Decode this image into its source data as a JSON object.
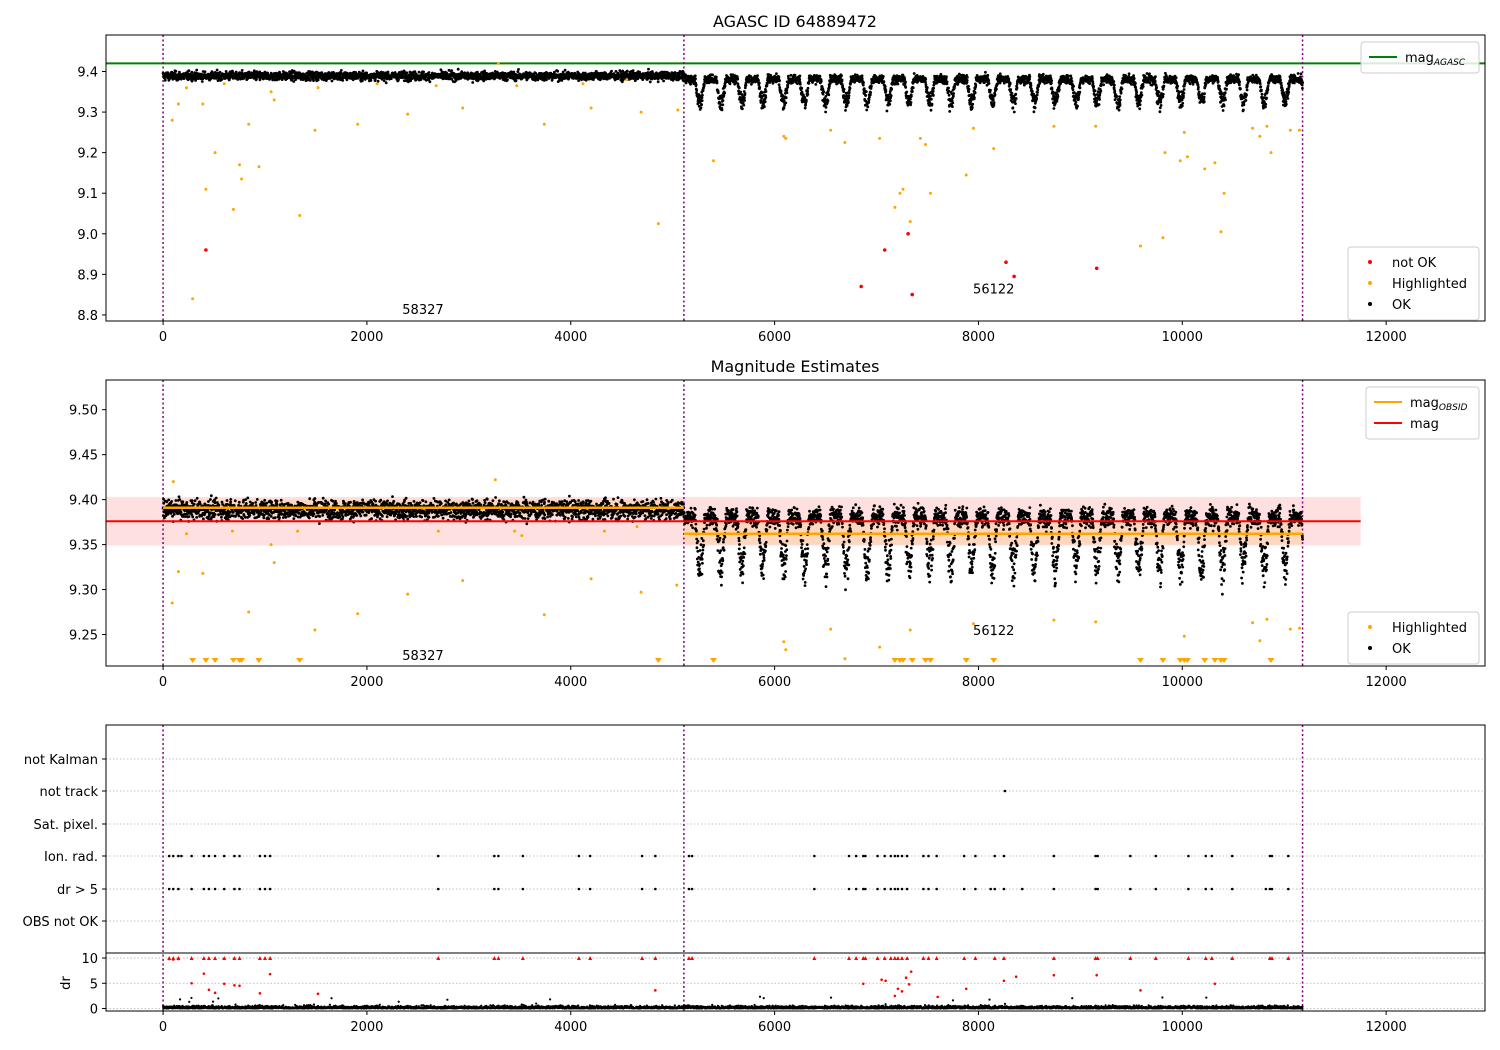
{
  "figure": {
    "panels": [
      {
        "title": "AGASC ID 64889472",
        "xlim": [
          -560,
          12970
        ],
        "ylim": [
          8.785,
          9.49
        ],
        "x_ticks": [
          0,
          2000,
          4000,
          6000,
          8000,
          10000,
          12000
        ],
        "y_ticks": [
          8.8,
          8.9,
          9.0,
          9.1,
          9.2,
          9.3,
          9.4
        ],
        "y_tick_labels": [
          "8.8",
          "8.9",
          "9.0",
          "9.1",
          "9.2",
          "9.3",
          "9.4"
        ],
        "obsid_labels": [
          {
            "text": "58327",
            "x": 2550,
            "y": 8.815
          },
          {
            "text": "56122",
            "x": 8150,
            "y": 8.865
          }
        ],
        "legend_top": {
          "entries": [
            {
              "label": "mag",
              "sub": "AGASC",
              "color": "#008000",
              "kind": "line"
            }
          ]
        },
        "legend_bottom": {
          "entries": [
            {
              "label": "not OK",
              "color": "#ff0000",
              "kind": "dot"
            },
            {
              "label": "Highlighted",
              "color": "#ffa500",
              "kind": "dot"
            },
            {
              "label": "OK",
              "color": "#000000",
              "kind": "dot"
            }
          ]
        }
      },
      {
        "title": "Magnitude Estimates",
        "xlim": [
          -560,
          12970
        ],
        "ylim": [
          9.215,
          9.533
        ],
        "x_ticks": [
          0,
          2000,
          4000,
          6000,
          8000,
          10000,
          12000
        ],
        "y_ticks": [
          9.25,
          9.3,
          9.35,
          9.4,
          9.45,
          9.5
        ],
        "y_tick_labels": [
          "9.25",
          "9.30",
          "9.35",
          "9.40",
          "9.45",
          "9.50"
        ],
        "obsid_labels": [
          {
            "text": "58327",
            "x": 2550,
            "y": 9.227
          },
          {
            "text": "56122",
            "x": 8150,
            "y": 9.255
          }
        ],
        "legend_top": {
          "entries": [
            {
              "label": "mag",
              "sub": "OBSID",
              "color": "#ffa500",
              "kind": "line"
            },
            {
              "label": "mag",
              "sub": "",
              "color": "#ff0000",
              "kind": "line"
            }
          ]
        },
        "legend_bottom": {
          "entries": [
            {
              "label": "Highlighted",
              "color": "#ffa500",
              "kind": "dot"
            },
            {
              "label": "OK",
              "color": "#000000",
              "kind": "dot"
            }
          ]
        }
      },
      {
        "flag_labels": [
          "not Kalman",
          "not track",
          "Sat. pixel.",
          "Ion. rad.",
          "dr > 5",
          "OBS not OK"
        ],
        "dr_label": "dr",
        "dr_ticks": [
          0,
          5,
          10
        ],
        "dr_tick_labels": [
          "0",
          "5",
          "10"
        ],
        "x_ticks": [
          0,
          2000,
          4000,
          6000,
          8000,
          10000,
          12000
        ]
      }
    ]
  },
  "chart_data": [
    {
      "type": "scatter",
      "title": "AGASC ID 64889472",
      "xlabel": "",
      "ylabel": "",
      "xlim": [
        -560,
        12970
      ],
      "ylim": [
        8.785,
        9.49
      ],
      "grid": false,
      "legend": [
        "upper right",
        "lower right"
      ],
      "reference_lines": [
        {
          "name": "mag_AGASC",
          "y": 9.42,
          "color": "#008000"
        }
      ],
      "observation_boundaries_x": [
        0,
        5110,
        11180
      ],
      "observations": [
        {
          "obsid": "58327",
          "x_range": [
            0,
            5110
          ],
          "ok_mag_median": 9.39,
          "ok_mag_spread": 0.012
        },
        {
          "obsid": "56122",
          "x_range": [
            5110,
            11180
          ],
          "ok_mag_median": 9.375,
          "ok_mag_dips_to": 9.31
        }
      ],
      "series": [
        {
          "name": "not OK",
          "color": "#ff0000",
          "points": [
            [
              420,
              8.96
            ],
            [
              6850,
              8.87
            ],
            [
              7080,
              8.96
            ],
            [
              7310,
              9.0
            ],
            [
              7350,
              8.85
            ],
            [
              8270,
              8.93
            ],
            [
              8350,
              8.895
            ],
            [
              9160,
              8.915
            ]
          ]
        },
        {
          "name": "Highlighted",
          "color": "#ffa500",
          "points": [
            [
              90,
              9.28
            ],
            [
              150,
              9.32
            ],
            [
              290,
              8.84
            ],
            [
              390,
              9.32
            ],
            [
              420,
              9.11
            ],
            [
              510,
              9.2
            ],
            [
              690,
              9.06
            ],
            [
              750,
              9.17
            ],
            [
              770,
              9.135
            ],
            [
              840,
              9.27
            ],
            [
              940,
              9.165
            ],
            [
              1060,
              9.35
            ],
            [
              1090,
              9.33
            ],
            [
              1340,
              9.045
            ],
            [
              1490,
              9.255
            ],
            [
              1910,
              9.27
            ],
            [
              2400,
              9.295
            ],
            [
              2940,
              9.31
            ],
            [
              3740,
              9.27
            ],
            [
              4200,
              9.31
            ],
            [
              4690,
              9.3
            ],
            [
              4860,
              9.025
            ],
            [
              5400,
              9.18
            ],
            [
              6090,
              9.24
            ],
            [
              6110,
              9.235
            ],
            [
              6550,
              9.255
            ],
            [
              6690,
              9.225
            ],
            [
              7030,
              9.235
            ],
            [
              7180,
              9.065
            ],
            [
              7230,
              9.1
            ],
            [
              7260,
              9.11
            ],
            [
              7330,
              9.03
            ],
            [
              7430,
              9.235
            ],
            [
              7480,
              9.22
            ],
            [
              7530,
              9.1
            ],
            [
              7880,
              9.145
            ],
            [
              7950,
              9.26
            ],
            [
              8150,
              9.21
            ],
            [
              8740,
              9.265
            ],
            [
              9150,
              9.265
            ],
            [
              9590,
              8.97
            ],
            [
              9810,
              8.99
            ],
            [
              9830,
              9.2
            ],
            [
              9980,
              9.18
            ],
            [
              10020,
              9.25
            ],
            [
              10050,
              9.19
            ],
            [
              10220,
              9.16
            ],
            [
              10320,
              9.175
            ],
            [
              10380,
              9.005
            ],
            [
              10410,
              9.1
            ],
            [
              10690,
              9.26
            ],
            [
              10760,
              9.24
            ],
            [
              10830,
              9.265
            ],
            [
              10870,
              9.2
            ],
            [
              11060,
              9.255
            ],
            [
              11150,
              9.255
            ],
            [
              230,
              9.36
            ],
            [
              600,
              9.37
            ],
            [
              1520,
              9.36
            ],
            [
              2100,
              9.37
            ],
            [
              2680,
              9.365
            ],
            [
              3290,
              9.42
            ],
            [
              3470,
              9.365
            ],
            [
              4120,
              9.37
            ],
            [
              4550,
              9.38
            ],
            [
              5050,
              9.305
            ]
          ]
        },
        {
          "name": "OK",
          "color": "#000000",
          "points": "dense band; see observations"
        }
      ]
    },
    {
      "type": "scatter",
      "title": "Magnitude Estimates",
      "xlabel": "",
      "ylabel": "",
      "xlim": [
        -560,
        12970
      ],
      "ylim": [
        9.215,
        9.533
      ],
      "grid": false,
      "legend": [
        "upper right",
        "lower right"
      ],
      "reference_lines": [
        {
          "name": "mag_OBSID",
          "color": "#ffa500",
          "segments": [
            {
              "x": [
                0,
                5110
              ],
              "y": 9.391,
              "band": [
                9.382,
                9.4
              ]
            },
            {
              "x": [
                5110,
                11180
              ],
              "y": 9.362,
              "band": [
                9.35,
                9.375
              ]
            }
          ]
        },
        {
          "name": "mag",
          "color": "#ff0000",
          "x": [
            -560,
            11750
          ],
          "y": 9.376,
          "band": [
            9.349,
            9.403
          ]
        }
      ],
      "observation_boundaries_x": [
        0,
        5110,
        11180
      ],
      "series": [
        {
          "name": "Highlighted",
          "color": "#ffa500",
          "points": [
            [
              90,
              9.285
            ],
            [
              150,
              9.32
            ],
            [
              390,
              9.318
            ],
            [
              840,
              9.275
            ],
            [
              1060,
              9.35
            ],
            [
              1090,
              9.33
            ],
            [
              1490,
              9.255
            ],
            [
              1910,
              9.273
            ],
            [
              2400,
              9.295
            ],
            [
              2940,
              9.31
            ],
            [
              3740,
              9.272
            ],
            [
              4200,
              9.312
            ],
            [
              4690,
              9.297
            ],
            [
              5040,
              9.305
            ],
            [
              6090,
              9.242
            ],
            [
              6110,
              9.233
            ],
            [
              6550,
              9.256
            ],
            [
              6690,
              9.223
            ],
            [
              7030,
              9.236
            ],
            [
              7330,
              9.255
            ],
            [
              7950,
              9.262
            ],
            [
              8150,
              9.25
            ],
            [
              8740,
              9.266
            ],
            [
              9150,
              9.264
            ],
            [
              10020,
              9.248
            ],
            [
              10690,
              9.263
            ],
            [
              10760,
              9.243
            ],
            [
              10830,
              9.267
            ],
            [
              11060,
              9.256
            ],
            [
              11150,
              9.257
            ],
            [
              100,
              9.42
            ],
            [
              230,
              9.362
            ],
            [
              680,
              9.365
            ],
            [
              1320,
              9.365
            ],
            [
              2700,
              9.365
            ],
            [
              3260,
              9.422
            ],
            [
              3450,
              9.365
            ],
            [
              3520,
              9.36
            ],
            [
              4330,
              9.365
            ],
            [
              4650,
              9.37
            ]
          ]
        },
        {
          "name": "Highlighted (below axis)",
          "color": "#ffa500",
          "marker": "triangle-down",
          "x": [
            290,
            420,
            510,
            690,
            750,
            770,
            940,
            1340,
            4860,
            5400,
            7180,
            7230,
            7260,
            7350,
            7480,
            7530,
            7880,
            8150,
            9590,
            9810,
            9980,
            10020,
            10050,
            10220,
            10320,
            10380,
            10410,
            10870
          ]
        },
        {
          "name": "OK",
          "color": "#000000",
          "points": "dense band; see observations"
        }
      ]
    },
    {
      "type": "scatter",
      "title": "",
      "xlabel": "",
      "ylabel": "",
      "flag_rows": [
        "not Kalman",
        "not track",
        "Sat. pixel.",
        "Ion. rad.",
        "dr > 5",
        "OBS not OK"
      ],
      "flag_points": {
        "not track": [
          8260
        ],
        "Ion. rad.": [
          60,
          100,
          150,
          180,
          280,
          400,
          450,
          510,
          600,
          700,
          750,
          950,
          1000,
          1050,
          2700,
          3250,
          3290,
          3530,
          4080,
          4190,
          4700,
          4830,
          5160,
          5190,
          6390,
          6730,
          6800,
          6870,
          6890,
          7010,
          7080,
          7140,
          7180,
          7210,
          7250,
          7300,
          7460,
          7510,
          7590,
          7860,
          7970,
          8160,
          8250,
          8740,
          9150,
          9170,
          9490,
          9740,
          10060,
          10230,
          10290,
          10490,
          10860,
          10880,
          11040
        ],
        "dr > 5": [
          60,
          100,
          150,
          280,
          400,
          450,
          510,
          600,
          700,
          750,
          950,
          1000,
          1050,
          2700,
          3250,
          3290,
          3530,
          4080,
          4190,
          4700,
          4830,
          5160,
          5190,
          6390,
          6730,
          6800,
          6870,
          6890,
          7010,
          7080,
          7140,
          7180,
          7210,
          7250,
          7300,
          7460,
          7510,
          7590,
          7860,
          7970,
          8120,
          8160,
          8250,
          8430,
          8740,
          9150,
          9170,
          9490,
          9740,
          10060,
          10230,
          10290,
          10490,
          10820,
          10860,
          10880,
          11040
        ]
      },
      "dr_ylim": [
        -0.5,
        11
      ],
      "dr_ticks": [
        0,
        5,
        10
      ],
      "dr_points_high": [
        [
          60,
          9.8
        ],
        [
          100,
          9.7
        ],
        [
          150,
          9.8
        ],
        [
          280,
          5.0
        ],
        [
          400,
          6.9
        ],
        [
          450,
          3.7
        ],
        [
          510,
          3.1
        ],
        [
          600,
          4.9
        ],
        [
          700,
          4.6
        ],
        [
          750,
          4.5
        ],
        [
          950,
          3.0
        ],
        [
          1050,
          6.8
        ],
        [
          1520,
          2.9
        ],
        [
          4830,
          3.6
        ],
        [
          6870,
          4.9
        ],
        [
          7050,
          5.7
        ],
        [
          7090,
          5.5
        ],
        [
          7180,
          2.5
        ],
        [
          7210,
          3.9
        ],
        [
          7250,
          3.4
        ],
        [
          7290,
          6.1
        ],
        [
          7320,
          4.8
        ],
        [
          7340,
          7.3
        ],
        [
          7600,
          2.3
        ],
        [
          7880,
          3.9
        ],
        [
          8250,
          5.5
        ],
        [
          8370,
          6.3
        ],
        [
          8740,
          6.6
        ],
        [
          9160,
          6.6
        ],
        [
          9590,
          3.6
        ],
        [
          10320,
          4.9
        ]
      ],
      "dr_clip_10_x": [
        60,
        100,
        150,
        280,
        400,
        450,
        510,
        600,
        700,
        750,
        950,
        1000,
        1050,
        2700,
        3250,
        3290,
        3530,
        4080,
        4190,
        4700,
        4830,
        5160,
        5190,
        6390,
        6730,
        6800,
        6870,
        6890,
        7010,
        7080,
        7140,
        7180,
        7210,
        7250,
        7300,
        7460,
        7510,
        7590,
        7860,
        7970,
        8160,
        8250,
        8740,
        9150,
        9170,
        9490,
        9740,
        10060,
        10230,
        10290,
        10490,
        10860,
        10880,
        11040
      ]
    }
  ]
}
